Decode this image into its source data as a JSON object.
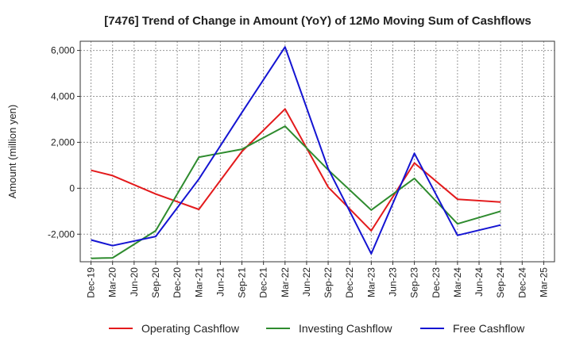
{
  "chart_data": {
    "type": "line",
    "title": "[7476]  Trend of Change in Amount (YoY) of 12Mo Moving Sum of Cashflows",
    "xlabel": "",
    "ylabel": "Amount (million yen)",
    "ylim": [
      -3200,
      6400
    ],
    "yticks": [
      -2000,
      0,
      2000,
      4000,
      6000
    ],
    "ytick_labels": [
      "-2,000",
      "0",
      "2,000",
      "4,000",
      "6,000"
    ],
    "categories": [
      "Dec-19",
      "Mar-20",
      "Jun-20",
      "Sep-20",
      "Dec-20",
      "Mar-21",
      "Jun-21",
      "Sep-21",
      "Dec-21",
      "Mar-22",
      "Jun-22",
      "Sep-22",
      "Dec-22",
      "Mar-23",
      "Jun-23",
      "Sep-23",
      "Dec-23",
      "Mar-24",
      "Jun-24",
      "Sep-24",
      "Dec-24",
      "Mar-25"
    ],
    "grid": true,
    "legend_position": "bottom",
    "series": [
      {
        "name": "Operating Cashflow",
        "color": "#e31a1c",
        "values": [
          780,
          550,
          null,
          -250,
          null,
          -920,
          null,
          1600,
          null,
          3450,
          null,
          50,
          null,
          -1850,
          null,
          1100,
          null,
          -480,
          null,
          -600,
          null,
          null
        ]
      },
      {
        "name": "Investing Cashflow",
        "color": "#2e8b2e",
        "values": [
          -3050,
          -3030,
          null,
          -1850,
          null,
          1350,
          null,
          1700,
          null,
          2700,
          null,
          800,
          null,
          -950,
          null,
          430,
          null,
          -1550,
          null,
          -1000,
          null,
          null
        ]
      },
      {
        "name": "Free Cashflow",
        "color": "#1414d2",
        "values": [
          -2250,
          -2500,
          null,
          -2100,
          null,
          400,
          null,
          3300,
          null,
          6150,
          null,
          850,
          null,
          -2850,
          null,
          1520,
          null,
          -2050,
          null,
          -1600,
          null,
          null
        ]
      }
    ]
  }
}
